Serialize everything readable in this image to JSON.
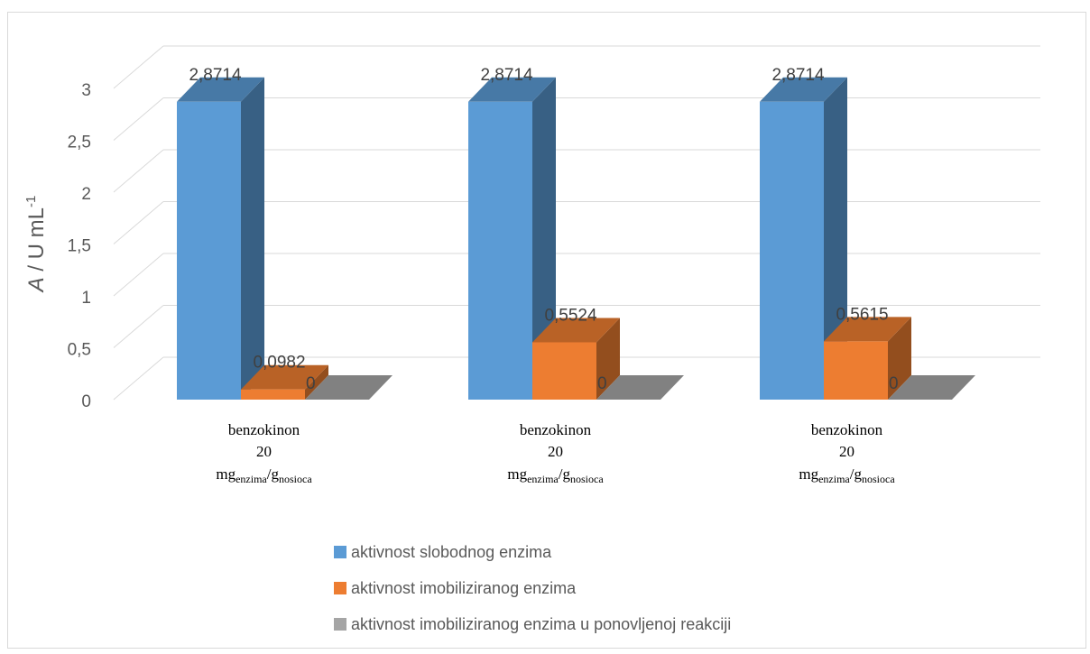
{
  "chart_data": {
    "type": "bar",
    "categories": [
      {
        "line1": "benzokinon",
        "line2": "20",
        "unit_main1": "mg",
        "unit_sub1": "enzima",
        "unit_sep": "/",
        "unit_main2": "g",
        "unit_sub2": "nosioca"
      },
      {
        "line1": "benzokinon",
        "line2": "20",
        "unit_main1": "mg",
        "unit_sub1": "enzima",
        "unit_sep": "/",
        "unit_main2": "g",
        "unit_sub2": "nosioca"
      },
      {
        "line1": "benzokinon",
        "line2": "20",
        "unit_main1": "mg",
        "unit_sub1": "enzima",
        "unit_sep": "/",
        "unit_main2": "g",
        "unit_sub2": "nosioca"
      }
    ],
    "series": [
      {
        "name": "aktivnost slobodnog enzima",
        "color": "#5b9bd5",
        "values": [
          2.8714,
          2.8714,
          2.8714
        ],
        "labels": [
          "2,8714",
          "2,8714",
          "2,8714"
        ]
      },
      {
        "name": "aktivnost imobiliziranog enzima",
        "color": "#ed7d31",
        "values": [
          0.0982,
          0.5524,
          0.5615
        ],
        "labels": [
          "0,0982",
          "0,5524",
          "0,5615"
        ]
      },
      {
        "name": "aktivnost imobiliziranog enzima u ponovljenoj reakciji",
        "color": "#a5a5a5",
        "values": [
          0,
          0,
          0
        ],
        "labels": [
          "0",
          "0",
          "0"
        ]
      }
    ],
    "ylabel_italic": "A",
    "ylabel_rest": " / U mL",
    "ylabel_sup": "-1",
    "ylim": [
      0,
      3
    ],
    "yticks": [
      0,
      0.5,
      1,
      1.5,
      2,
      2.5,
      3
    ],
    "ytick_labels": [
      "0",
      "0,5",
      "1",
      "1,5",
      "2",
      "2,5",
      "3"
    ],
    "grid": true,
    "style": "3d-clustered-column",
    "legend_position": "bottom"
  }
}
